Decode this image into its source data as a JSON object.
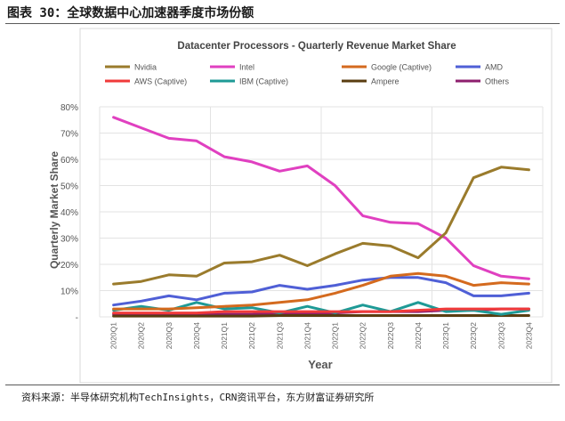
{
  "figure": {
    "label": "图表 30：全球数据中心加速器季度市场份额",
    "source": "资料来源：半导体研究机构TechInsights，CRN资讯平台，东方财富证券研究所"
  },
  "chart_data": {
    "type": "line",
    "title": "Datacenter Processors - Quarterly Revenue Market Share",
    "xlabel": "Year",
    "ylabel": "Quarterly Market Share",
    "ylim": [
      0,
      80
    ],
    "yticks": [
      "-",
      "10%",
      "20%",
      "30%",
      "40%",
      "50%",
      "60%",
      "70%",
      "80%"
    ],
    "legend_position": "top",
    "grid": true,
    "categories": [
      "2020Q1",
      "2020Q2",
      "2020Q3",
      "2020Q4",
      "2021Q1",
      "2021Q2",
      "2021Q3",
      "2021Q4",
      "2022Q1",
      "2022Q2",
      "2022Q3",
      "2022Q4",
      "2023Q1",
      "2023Q2",
      "2023Q3",
      "2023Q4"
    ],
    "series": [
      {
        "name": "Nvidia",
        "color": "#9A7B2C",
        "values": [
          12.5,
          13.5,
          16,
          15.5,
          20.5,
          21,
          23.5,
          19.5,
          24,
          28,
          27,
          22.5,
          32,
          53,
          57,
          56
        ]
      },
      {
        "name": "Intel",
        "color": "#E040C0",
        "values": [
          76,
          72,
          68,
          67,
          61,
          59,
          55.5,
          57.5,
          50,
          38.5,
          36,
          35.5,
          30,
          19.5,
          15.5,
          14.5
        ]
      },
      {
        "name": "Google (Captive)",
        "color": "#D46A1E",
        "values": [
          3,
          3,
          3,
          3.5,
          4,
          4.5,
          5.5,
          6.5,
          9,
          12,
          15.5,
          16.5,
          15.5,
          12,
          13,
          12.5
        ]
      },
      {
        "name": "AMD",
        "color": "#4F5FD6",
        "values": [
          4.5,
          6,
          8,
          6.5,
          9,
          9.5,
          12,
          10.5,
          12,
          14,
          15,
          15,
          13,
          8,
          8,
          9
        ]
      },
      {
        "name": "AWS (Captive)",
        "color": "#F03A3A",
        "values": [
          1.5,
          1.5,
          1.5,
          1.5,
          2,
          2,
          2,
          2,
          2,
          2,
          2,
          2.5,
          3,
          3,
          3,
          3
        ]
      },
      {
        "name": "IBM (Captive)",
        "color": "#1E9A96",
        "values": [
          2.5,
          4,
          2.5,
          5.5,
          3,
          3.5,
          1.5,
          4,
          1.5,
          4.5,
          2,
          5.5,
          2,
          2.5,
          1,
          2.5
        ]
      },
      {
        "name": "Ampere",
        "color": "#5A3D10",
        "values": [
          0.3,
          0.3,
          0.3,
          0.3,
          0.3,
          0.3,
          0.5,
          0.5,
          0.5,
          0.5,
          0.5,
          0.5,
          0.5,
          0.5,
          0.5,
          0.5
        ]
      },
      {
        "name": "Others",
        "color": "#8E1F6E",
        "values": [
          1,
          1,
          1,
          1,
          1,
          1,
          1.5,
          1.5,
          1.5,
          2,
          2,
          2,
          2.5,
          2.5,
          3,
          3
        ]
      }
    ]
  }
}
